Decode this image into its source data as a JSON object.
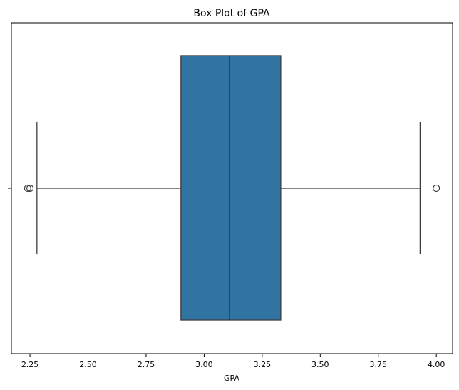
{
  "chart_data": {
    "type": "box",
    "title": "Box Plot of GPA",
    "xlabel": "GPA",
    "ylabel": "",
    "xlim": [
      2.17,
      4.07
    ],
    "xticks": [
      2.25,
      2.5,
      2.75,
      3.0,
      3.25,
      3.5,
      3.75,
      4.0
    ],
    "xtick_labels": [
      "2.25",
      "2.50",
      "2.75",
      "3.00",
      "3.25",
      "3.50",
      "3.75",
      "4.00"
    ],
    "box": {
      "whisker_low": 2.28,
      "q1": 2.9,
      "median": 3.11,
      "q3": 3.33,
      "whisker_high": 3.93,
      "outliers": [
        2.24,
        2.25,
        4.0
      ]
    },
    "box_color": "#3274a1",
    "line_color": "#3d3d3d",
    "grid": false,
    "legend": "none"
  }
}
